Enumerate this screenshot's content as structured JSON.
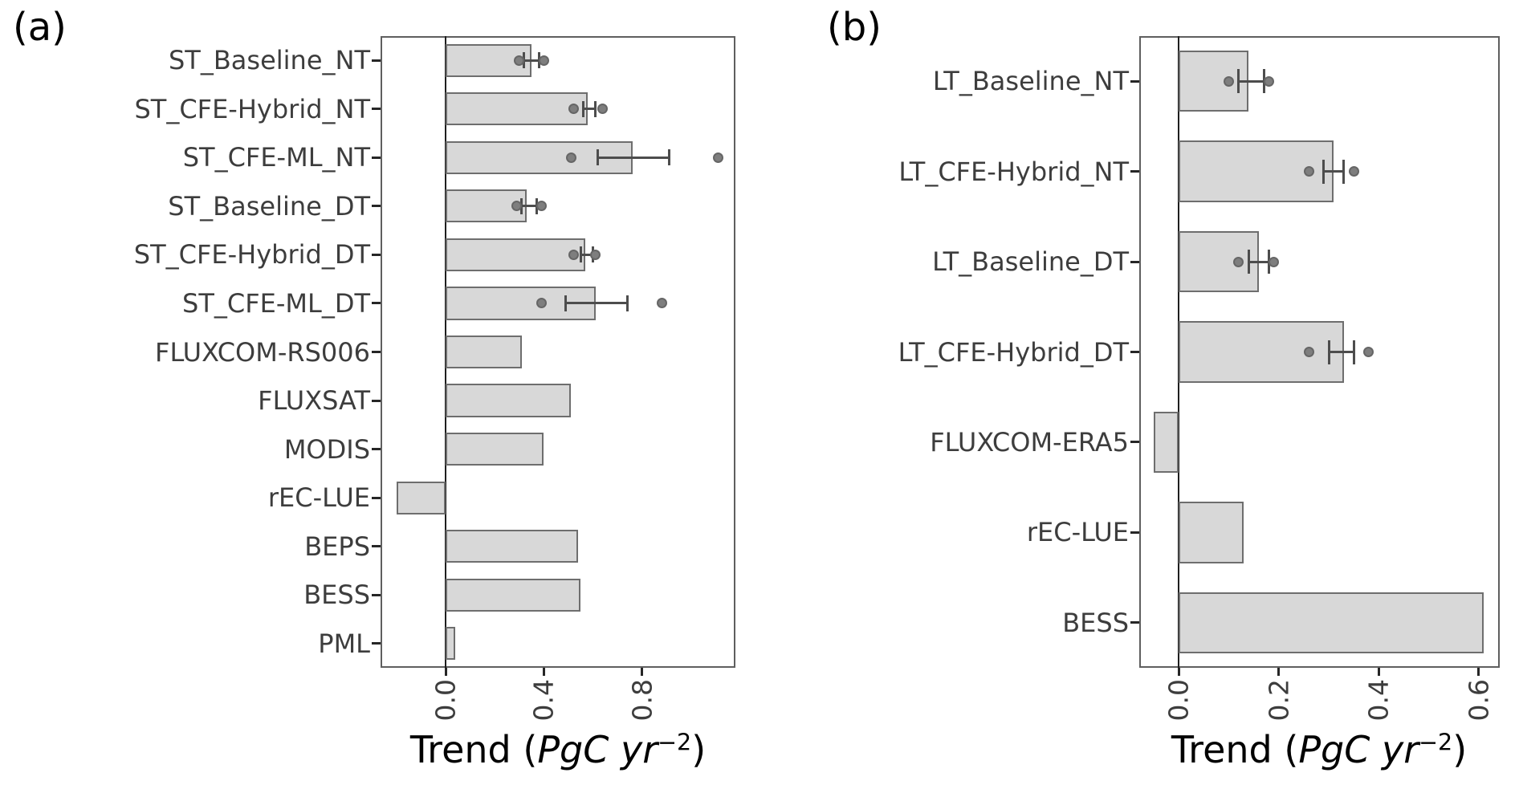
{
  "panel_tags": {
    "a": "(a)",
    "b": "(b)"
  },
  "xlabel": {
    "prefix": "Trend (",
    "italic": "PgC yr",
    "sup": "−2",
    "suffix": ")"
  },
  "style": {
    "bar_fill": "#d8d8d8",
    "bar_edge": "#6e6e6e",
    "error_color": "#4d4d4d",
    "point_color": "#7e7e7e",
    "frame_color": "#5f5f5f",
    "zero_line_color": "#1f1f1f",
    "tick_color": "#262626",
    "text_color": "#3d3d3d"
  },
  "chart_data": [
    {
      "panel": "a",
      "type": "bar",
      "orientation": "horizontal",
      "title": "",
      "xlabel": "Trend (PgC yr⁻²)",
      "ylabel": "",
      "grid": false,
      "xlim": [
        -0.265,
        1.18
      ],
      "xticks": [
        0.0,
        0.4,
        0.8
      ],
      "xtick_labels": [
        "0.0",
        "0.4",
        "0.8"
      ],
      "categories": [
        "ST_Baseline_NT",
        "ST_CFE-Hybrid_NT",
        "ST_CFE-ML_NT",
        "ST_Baseline_DT",
        "ST_CFE-Hybrid_DT",
        "ST_CFE-ML_DT",
        "FLUXCOM-RS006",
        "FLUXSAT",
        "MODIS",
        "rEC-LUE",
        "BEPS",
        "BESS",
        "PML"
      ],
      "values": [
        0.35,
        0.58,
        0.76,
        0.33,
        0.57,
        0.61,
        0.31,
        0.51,
        0.4,
        -0.2,
        0.54,
        0.55,
        0.04
      ],
      "error_low": [
        0.32,
        0.56,
        0.62,
        0.31,
        0.55,
        0.49,
        null,
        null,
        null,
        null,
        null,
        null,
        null
      ],
      "error_high": [
        0.38,
        0.61,
        0.91,
        0.37,
        0.6,
        0.74,
        null,
        null,
        null,
        null,
        null,
        null,
        null
      ],
      "points": [
        [
          0.3,
          0.4
        ],
        [
          0.52,
          0.64
        ],
        [
          0.51,
          1.11
        ],
        [
          0.29,
          0.39
        ],
        [
          0.52,
          0.61
        ],
        [
          0.39,
          0.88
        ],
        null,
        null,
        null,
        null,
        null,
        null,
        null
      ]
    },
    {
      "panel": "b",
      "type": "bar",
      "orientation": "horizontal",
      "title": "",
      "xlabel": "Trend (PgC yr⁻²)",
      "ylabel": "",
      "grid": false,
      "xlim": [
        -0.079,
        0.642
      ],
      "xticks": [
        0.0,
        0.2,
        0.4,
        0.6
      ],
      "xtick_labels": [
        "0.0",
        "0.2",
        "0.4",
        "0.6"
      ],
      "categories": [
        "LT_Baseline_NT",
        "LT_CFE-Hybrid_NT",
        "LT_Baseline_DT",
        "LT_CFE-Hybrid_DT",
        "FLUXCOM-ERA5",
        "rEC-LUE",
        "BESS"
      ],
      "values": [
        0.14,
        0.31,
        0.16,
        0.33,
        -0.05,
        0.13,
        0.61
      ],
      "error_low": [
        0.12,
        0.29,
        0.14,
        0.3,
        null,
        null,
        null
      ],
      "error_high": [
        0.17,
        0.33,
        0.18,
        0.35,
        null,
        null,
        null
      ],
      "points": [
        [
          0.1,
          0.18
        ],
        [
          0.26,
          0.35
        ],
        [
          0.12,
          0.19
        ],
        [
          0.26,
          0.38
        ],
        null,
        null,
        null
      ]
    }
  ]
}
